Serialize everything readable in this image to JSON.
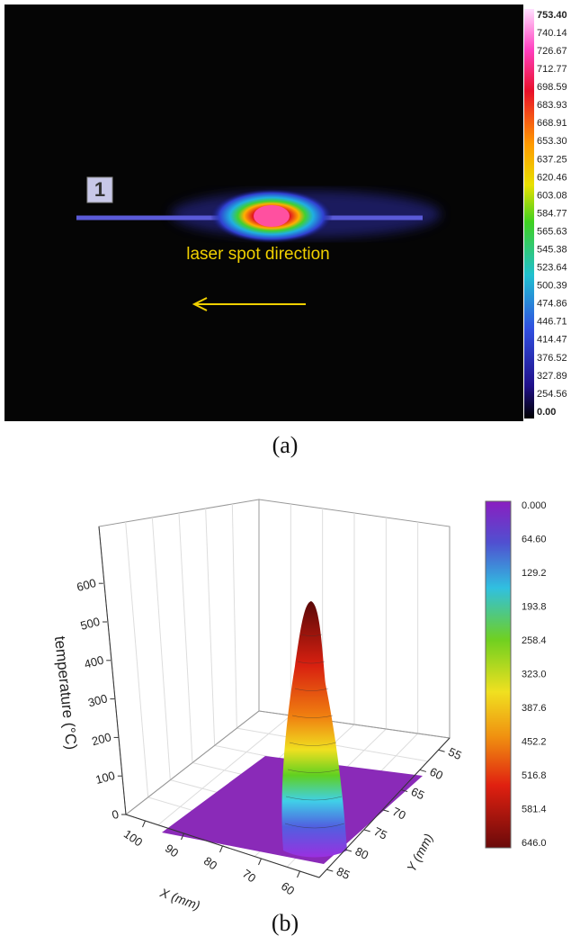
{
  "panel_a": {
    "marker": "1",
    "annotation": "laser spot direction",
    "colorbar_labels": [
      "753.40",
      "740.14",
      "726.67",
      "712.77",
      "698.59",
      "683.93",
      "668.91",
      "653.30",
      "637.25",
      "620.46",
      "603.08",
      "584.77",
      "565.63",
      "545.38",
      "523.64",
      "500.39",
      "474.86",
      "446.71",
      "414.47",
      "376.52",
      "327.89",
      "254.56",
      "0.00"
    ],
    "caption": "(a)"
  },
  "panel_b": {
    "z_label": "temperature (°C)",
    "x_label": "X (mm)",
    "y_label": "Y (mm)",
    "z_ticks": [
      0,
      100,
      200,
      300,
      400,
      500,
      600
    ],
    "x_ticks": [
      100,
      90,
      80,
      70,
      60
    ],
    "y_ticks": [
      55,
      60,
      65,
      70,
      75,
      80,
      85
    ],
    "colorbar_labels": [
      "0.000",
      "64.60",
      "129.2",
      "193.8",
      "258.4",
      "323.0",
      "387.6",
      "452.2",
      "516.8",
      "581.4",
      "646.0"
    ],
    "caption": "(b)"
  }
}
